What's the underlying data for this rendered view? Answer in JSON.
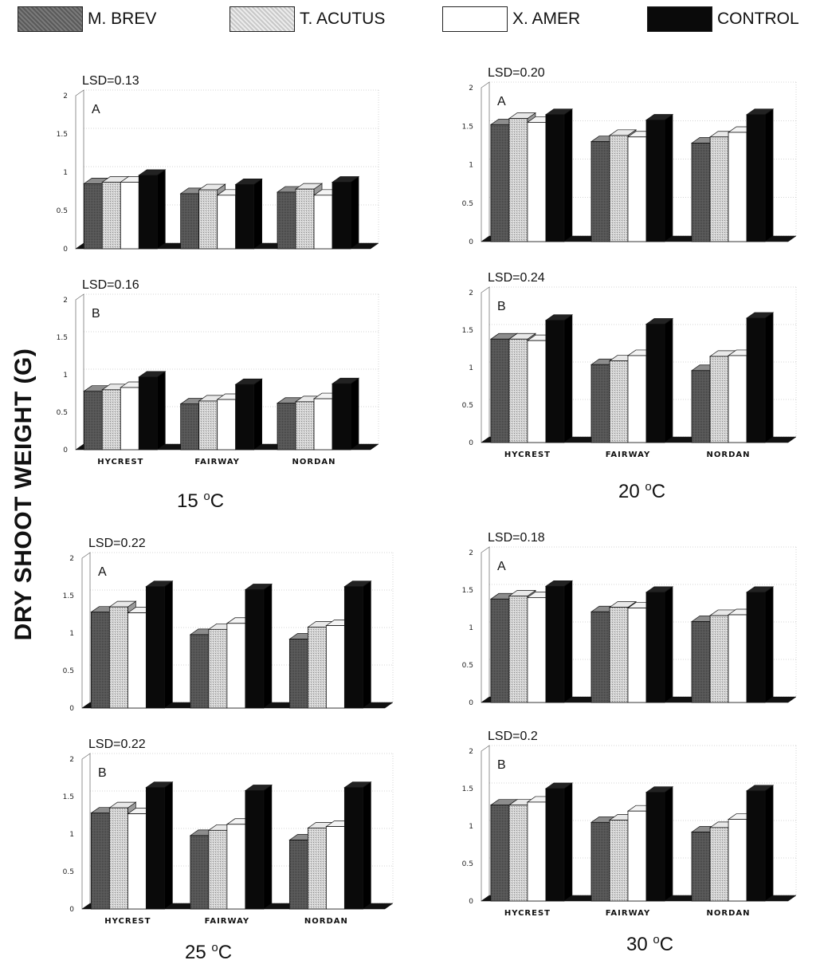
{
  "legend": [
    {
      "label": "M. BREV",
      "fill": "#6a6a6a"
    },
    {
      "label": "T. ACUTUS",
      "fill": "#d6d6d6"
    },
    {
      "label": "X. AMER",
      "fill": "#ffffff"
    },
    {
      "label": "CONTROL",
      "fill": "#0a0a0a"
    }
  ],
  "y_axis_label": "DRY SHOOT WEIGHT (G)",
  "temperatures": {
    "t15": {
      "value": "15 ",
      "unit_sup": "o",
      "unit": "C"
    },
    "t20": {
      "value": "20 ",
      "unit_sup": "o",
      "unit": "C"
    },
    "t25": {
      "value": "25 ",
      "unit_sup": "o",
      "unit": "C"
    },
    "t30": {
      "value": "30 ",
      "unit_sup": "o",
      "unit": "C"
    }
  },
  "chart_data": [
    {
      "type": "bar",
      "panel": "A",
      "lsd": "LSD=0.13",
      "categories": [
        "HYCREST",
        "FAIRWAY",
        "NORDAN"
      ],
      "series": [
        {
          "name": "M. BREV",
          "values": [
            0.85,
            0.72,
            0.74
          ]
        },
        {
          "name": "T. ACUTUS",
          "values": [
            0.87,
            0.77,
            0.78
          ]
        },
        {
          "name": "X. AMER",
          "values": [
            0.87,
            0.7,
            0.7
          ]
        },
        {
          "name": "CONTROL",
          "values": [
            0.96,
            0.84,
            0.87
          ]
        }
      ],
      "yticks": [
        "0",
        "0.5",
        "1",
        "1.5",
        "2"
      ],
      "ylim": [
        0,
        2
      ],
      "show_categories": false
    },
    {
      "type": "bar",
      "panel": "B",
      "lsd": "LSD=0.16",
      "categories": [
        "HYCREST",
        "FAIRWAY",
        "NORDAN"
      ],
      "series": [
        {
          "name": "M. BREV",
          "values": [
            0.78,
            0.61,
            0.62
          ]
        },
        {
          "name": "T. ACUTUS",
          "values": [
            0.8,
            0.65,
            0.64
          ]
        },
        {
          "name": "X. AMER",
          "values": [
            0.83,
            0.67,
            0.68
          ]
        },
        {
          "name": "CONTROL",
          "values": [
            0.97,
            0.87,
            0.88
          ]
        }
      ],
      "yticks": [
        "0",
        "0.5",
        "1",
        "1.5",
        "2"
      ],
      "ylim": [
        0,
        2
      ],
      "show_categories": true
    },
    {
      "type": "bar",
      "panel": "A",
      "lsd": "LSD=0.20",
      "categories": [
        "HYCREST",
        "FAIRWAY",
        "NORDAN"
      ],
      "series": [
        {
          "name": "M. BREV",
          "values": [
            1.52,
            1.3,
            1.28
          ]
        },
        {
          "name": "T. ACUTUS",
          "values": [
            1.6,
            1.38,
            1.36
          ]
        },
        {
          "name": "X. AMER",
          "values": [
            1.55,
            1.36,
            1.42
          ]
        },
        {
          "name": "CONTROL",
          "values": [
            1.65,
            1.58,
            1.65
          ]
        }
      ],
      "yticks": [
        "0",
        "0.5",
        "1",
        "1.5",
        "2"
      ],
      "ylim": [
        0,
        2
      ],
      "show_categories": false
    },
    {
      "type": "bar",
      "panel": "B",
      "lsd": "LSD=0.24",
      "categories": [
        "HYCREST",
        "FAIRWAY",
        "NORDAN"
      ],
      "series": [
        {
          "name": "M. BREV",
          "values": [
            1.38,
            1.04,
            0.96
          ]
        },
        {
          "name": "T. ACUTUS",
          "values": [
            1.38,
            1.09,
            1.15
          ]
        },
        {
          "name": "X. AMER",
          "values": [
            1.36,
            1.16,
            1.16
          ]
        },
        {
          "name": "CONTROL",
          "values": [
            1.63,
            1.58,
            1.66
          ]
        }
      ],
      "yticks": [
        "0",
        "0.5",
        "1",
        "1.5",
        "2"
      ],
      "ylim": [
        0,
        2
      ],
      "show_categories": true
    },
    {
      "type": "bar",
      "panel": "A",
      "lsd": "LSD=0.22",
      "categories": [
        "HYCREST",
        "FAIRWAY",
        "NORDAN"
      ],
      "series": [
        {
          "name": "M. BREV",
          "values": [
            1.28,
            0.98,
            0.92
          ]
        },
        {
          "name": "T. ACUTUS",
          "values": [
            1.35,
            1.05,
            1.08
          ]
        },
        {
          "name": "X. AMER",
          "values": [
            1.27,
            1.13,
            1.1
          ]
        },
        {
          "name": "CONTROL",
          "values": [
            1.62,
            1.58,
            1.62
          ]
        }
      ],
      "yticks": [
        "0",
        "0.5",
        "1",
        "1.5",
        "2"
      ],
      "ylim": [
        0,
        2
      ],
      "show_categories": false
    },
    {
      "type": "bar",
      "panel": "B",
      "lsd": "LSD=0.22",
      "categories": [
        "HYCREST",
        "FAIRWAY",
        "NORDAN"
      ],
      "series": [
        {
          "name": "M. BREV",
          "values": [
            1.28,
            0.98,
            0.92
          ]
        },
        {
          "name": "T. ACUTUS",
          "values": [
            1.35,
            1.05,
            1.08
          ]
        },
        {
          "name": "X. AMER",
          "values": [
            1.27,
            1.13,
            1.1
          ]
        },
        {
          "name": "CONTROL",
          "values": [
            1.62,
            1.58,
            1.62
          ]
        }
      ],
      "yticks": [
        "0",
        "0.5",
        "1",
        "1.5",
        "2"
      ],
      "ylim": [
        0,
        2
      ],
      "show_categories": true
    },
    {
      "type": "bar",
      "panel": "A",
      "lsd": "LSD=0.18",
      "categories": [
        "HYCREST",
        "FAIRWAY",
        "NORDAN"
      ],
      "series": [
        {
          "name": "M. BREV",
          "values": [
            1.38,
            1.21,
            1.08
          ]
        },
        {
          "name": "T. ACUTUS",
          "values": [
            1.42,
            1.27,
            1.16
          ]
        },
        {
          "name": "X. AMER",
          "values": [
            1.4,
            1.26,
            1.17
          ]
        },
        {
          "name": "CONTROL",
          "values": [
            1.55,
            1.47,
            1.47
          ]
        }
      ],
      "yticks": [
        "0",
        "0.5",
        "1",
        "1.5",
        "2"
      ],
      "ylim": [
        0,
        2
      ],
      "show_categories": false
    },
    {
      "type": "bar",
      "panel": "B",
      "lsd": "LSD=0.2",
      "categories": [
        "HYCREST",
        "FAIRWAY",
        "NORDAN"
      ],
      "series": [
        {
          "name": "M. BREV",
          "values": [
            1.28,
            1.05,
            0.92
          ]
        },
        {
          "name": "T. ACUTUS",
          "values": [
            1.28,
            1.08,
            0.98
          ]
        },
        {
          "name": "X. AMER",
          "values": [
            1.32,
            1.2,
            1.09
          ]
        },
        {
          "name": "CONTROL",
          "values": [
            1.5,
            1.45,
            1.47
          ]
        }
      ],
      "yticks": [
        "0",
        "0.5",
        "1",
        "1.5",
        "2"
      ],
      "ylim": [
        0,
        2
      ],
      "show_categories": true
    }
  ]
}
